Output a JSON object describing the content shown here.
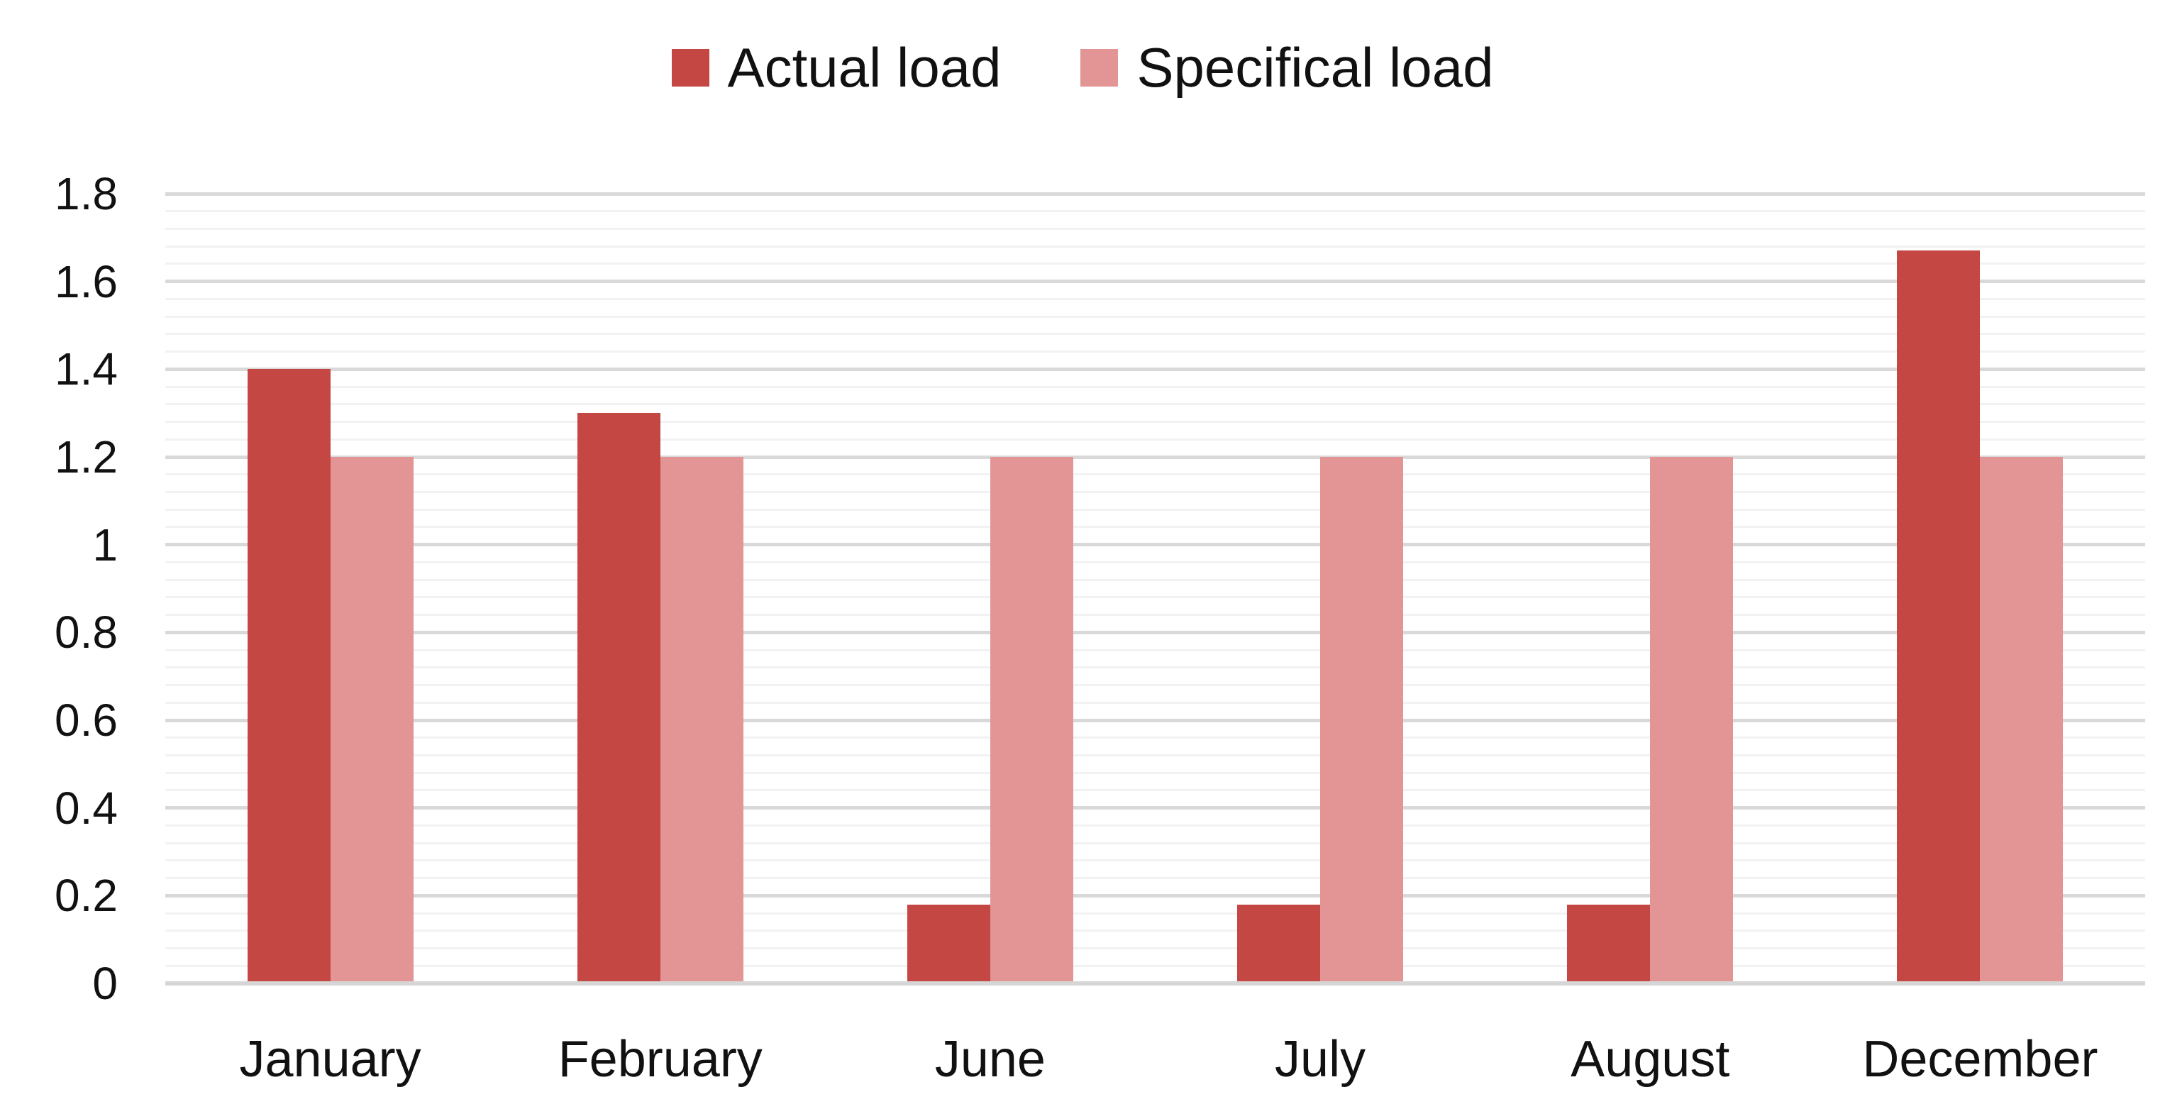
{
  "chart_data": {
    "type": "bar",
    "title": "",
    "categories": [
      "January",
      "February",
      "June",
      "July",
      "August",
      "December"
    ],
    "series": [
      {
        "name": "Actual load",
        "color": "#c44743",
        "values": [
          1.4,
          1.3,
          0.18,
          0.18,
          0.18,
          1.67
        ]
      },
      {
        "name": "Specifical load",
        "color": "#e39495",
        "values": [
          1.2,
          1.2,
          1.2,
          1.2,
          1.2,
          1.2
        ]
      }
    ],
    "xlabel": "",
    "ylabel": "",
    "ylim": [
      0,
      1.8
    ],
    "y_major_unit": 0.2,
    "y_minor_unit": 0.04,
    "y_tick_labels": [
      "0",
      "0.2",
      "0.4",
      "0.6",
      "0.8",
      "1",
      "1.2",
      "1.4",
      "1.6",
      "1.8"
    ],
    "grid": "horizontal major and minor gridlines on",
    "legend_position": "top-center"
  },
  "legend": {
    "items": [
      {
        "label": "Actual load",
        "swatch_color": "#c44743"
      },
      {
        "label": "Specifical load",
        "swatch_color": "#e39495"
      }
    ]
  },
  "colors": {
    "background": "#ffffff",
    "major_gridline": "#d9d9d9",
    "minor_gridline": "#f2f2f2",
    "axis_line": "#d6d6d6",
    "text": "#111111"
  }
}
